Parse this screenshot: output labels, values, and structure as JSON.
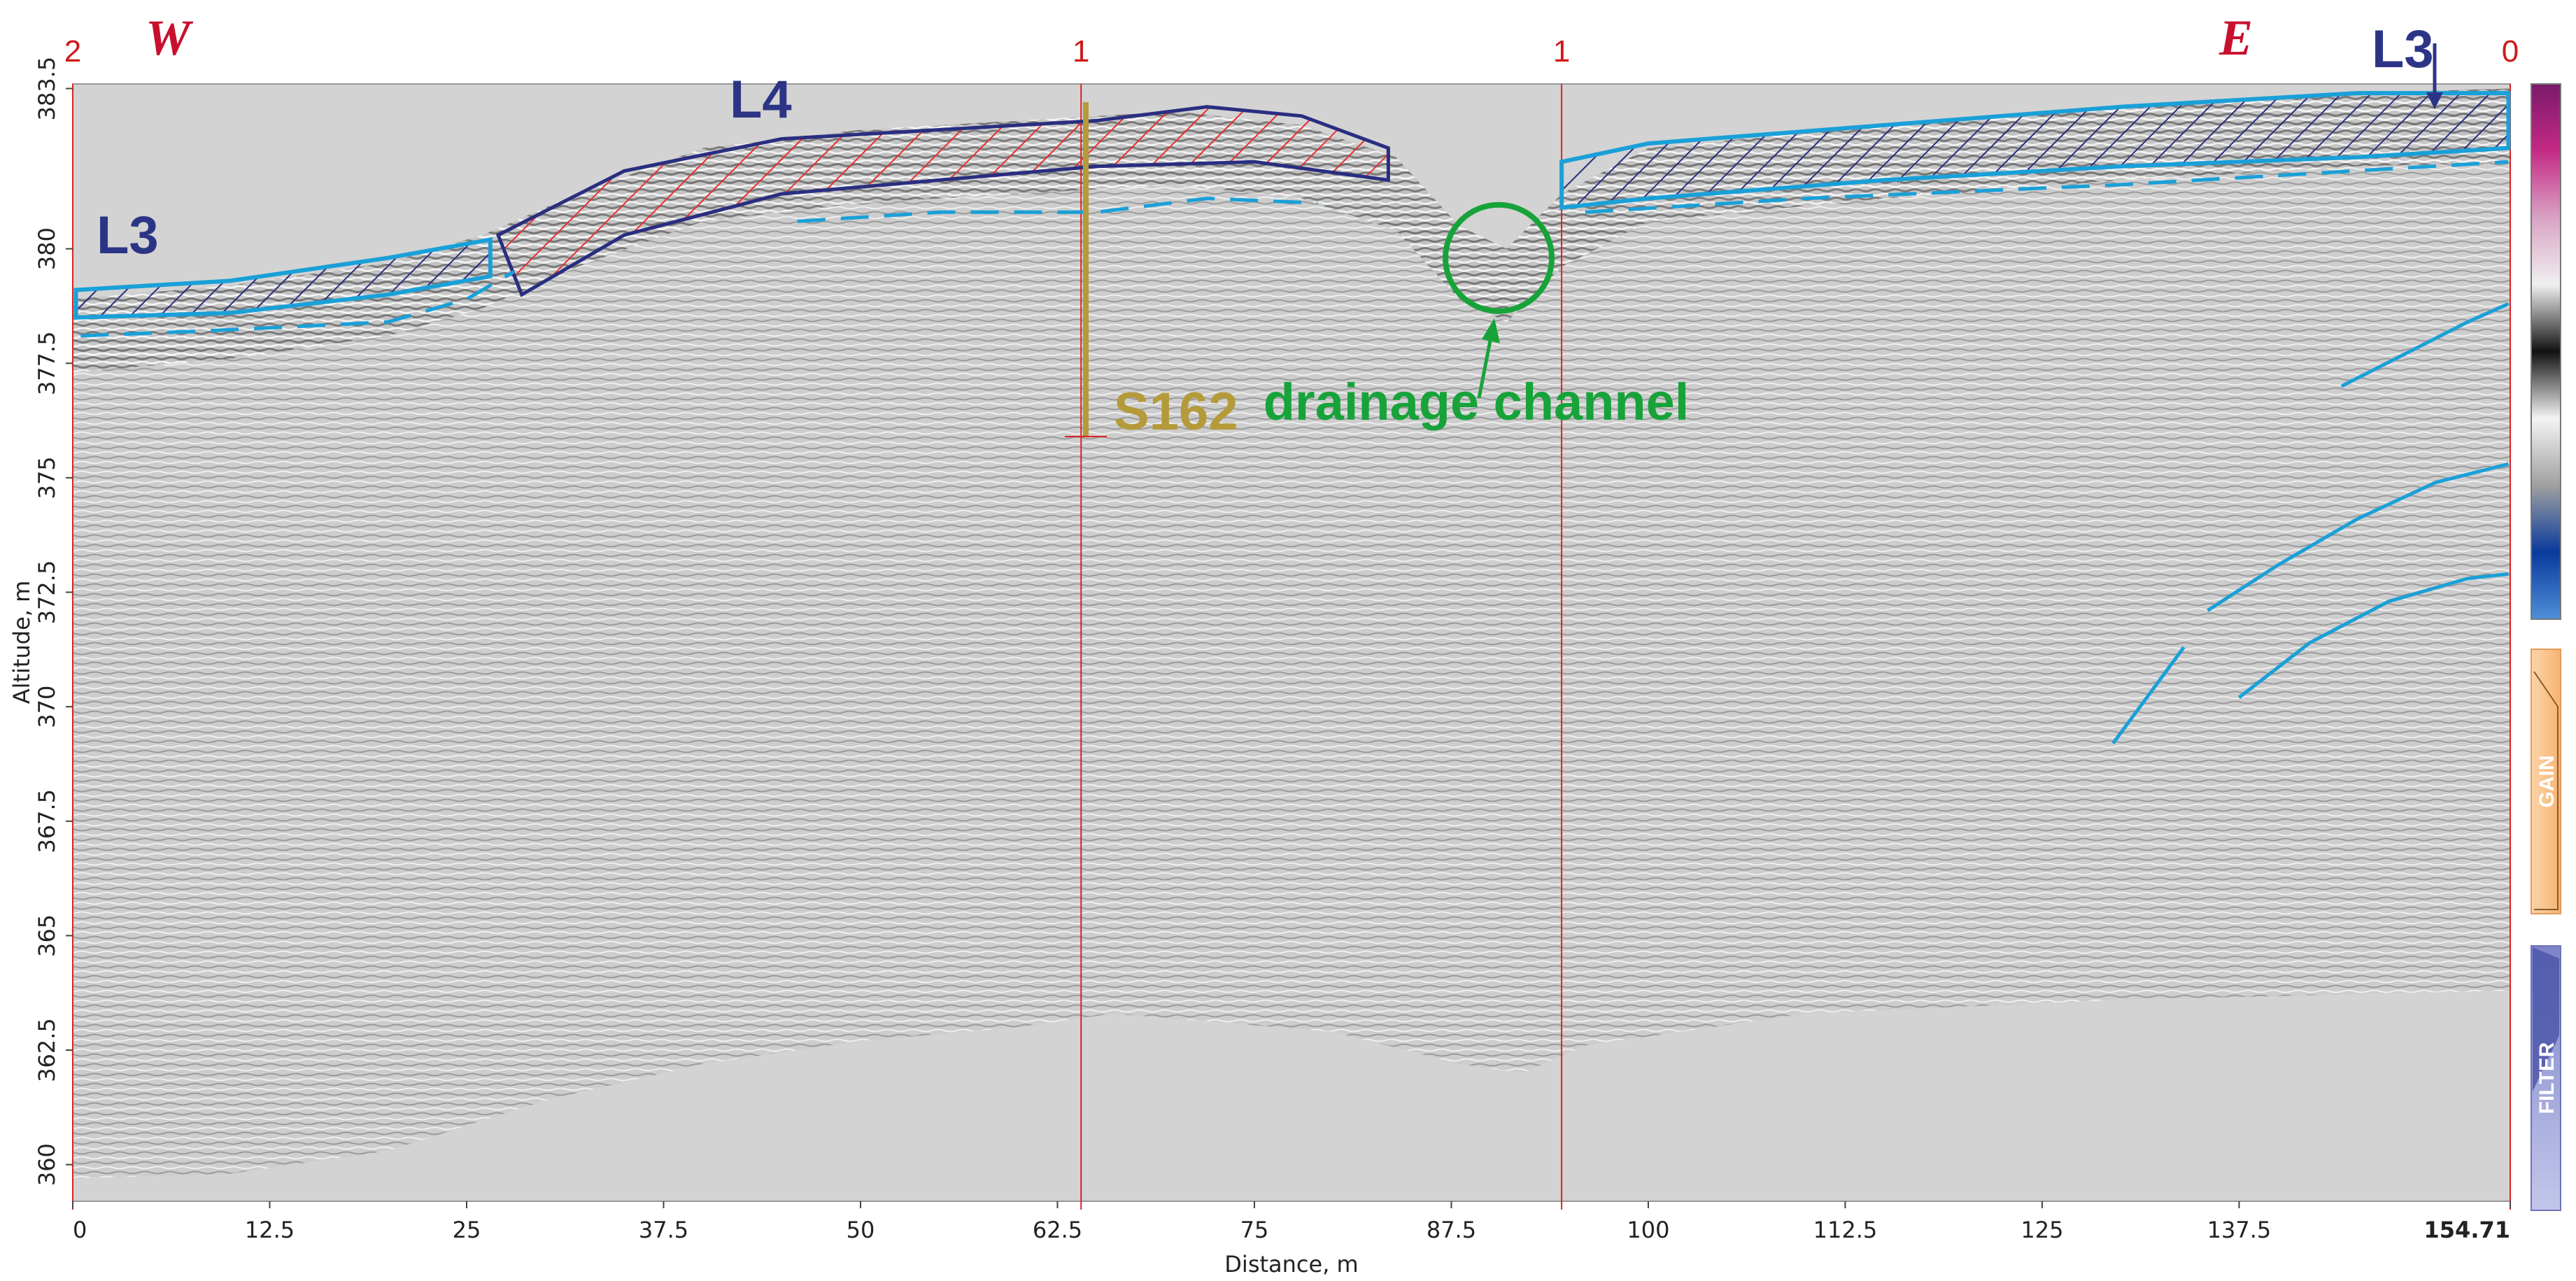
{
  "chart_data": {
    "type": "radargram",
    "xlabel": "Distance, m",
    "ylabel": "Altitude, m",
    "xlim": [
      0,
      154.71
    ],
    "ylim": [
      359.2,
      383.6
    ],
    "x_ticks": [
      "0",
      "12.5",
      "25",
      "37.5",
      "50",
      "62.5",
      "75",
      "87.5",
      "100",
      "112.5",
      "125",
      "137.5",
      "154.71"
    ],
    "x_tick_values": [
      0,
      12.5,
      25,
      37.5,
      50,
      62.5,
      75,
      87.5,
      100,
      112.5,
      125,
      137.5,
      154.71
    ],
    "y_ticks": [
      "360",
      "362.5",
      "365",
      "367.5",
      "370",
      "372.5",
      "375",
      "377.5",
      "380",
      "383.5"
    ],
    "y_tick_values": [
      360,
      362.5,
      365,
      367.5,
      370,
      372.5,
      375,
      377.5,
      380,
      383.5
    ],
    "direction_left": "W",
    "direction_right": "E",
    "markers": [
      {
        "label": "2",
        "x": 0
      },
      {
        "label": "1",
        "x": 64
      },
      {
        "label": "1",
        "x": 94.5
      },
      {
        "label": "0",
        "x": 154.71
      }
    ],
    "annotations": {
      "l3_left": "L3",
      "l3_right": "L3",
      "l4": "L4",
      "borehole": "S162",
      "feature": "drainage channel"
    },
    "borehole": {
      "x": 64.3,
      "top": 383.2,
      "bottom": 375.9
    },
    "channel_center": {
      "x": 90.5,
      "y": 379.8
    },
    "surface": [
      [
        0,
        378.9
      ],
      [
        10,
        379.2
      ],
      [
        20,
        379.7
      ],
      [
        26,
        380.3
      ],
      [
        32,
        381.2
      ],
      [
        40,
        382.2
      ],
      [
        50,
        382.6
      ],
      [
        60,
        382.8
      ],
      [
        70,
        383.0
      ],
      [
        78,
        382.7
      ],
      [
        84,
        382.0
      ],
      [
        88,
        380.5
      ],
      [
        91,
        380.0
      ],
      [
        94.5,
        381.2
      ],
      [
        100,
        382.2
      ],
      [
        115,
        382.7
      ],
      [
        130,
        383.1
      ],
      [
        145,
        383.4
      ],
      [
        154.71,
        383.5
      ]
    ],
    "base_of_signal": [
      [
        0,
        359.7
      ],
      [
        10,
        359.8
      ],
      [
        20,
        360.3
      ],
      [
        30,
        361.4
      ],
      [
        40,
        362.2
      ],
      [
        50,
        362.7
      ],
      [
        60,
        363.0
      ],
      [
        66,
        363.3
      ],
      [
        80,
        362.9
      ],
      [
        88,
        362.2
      ],
      [
        92,
        362.0
      ],
      [
        96,
        362.6
      ],
      [
        110,
        363.3
      ],
      [
        130,
        363.6
      ],
      [
        154.71,
        363.8
      ]
    ],
    "units": {
      "L3_left": [
        [
          0.2,
          379.1
        ],
        [
          10,
          379.3
        ],
        [
          20,
          379.8
        ],
        [
          26.5,
          380.2
        ],
        [
          26.5,
          379.4
        ],
        [
          20,
          379.0
        ],
        [
          10,
          378.6
        ],
        [
          0.2,
          378.5
        ]
      ],
      "L4": [
        [
          27,
          380.3
        ],
        [
          35,
          381.7
        ],
        [
          45,
          382.4
        ],
        [
          55,
          382.6
        ],
        [
          65,
          382.8
        ],
        [
          72,
          383.1
        ],
        [
          78,
          382.9
        ],
        [
          83.5,
          382.2
        ],
        [
          83.5,
          381.5
        ],
        [
          75,
          381.9
        ],
        [
          65,
          381.8
        ],
        [
          55,
          381.5
        ],
        [
          45,
          381.2
        ],
        [
          35,
          380.3
        ],
        [
          28.5,
          379.0
        ]
      ],
      "L3_right": [
        [
          94.5,
          381.9
        ],
        [
          100,
          382.3
        ],
        [
          115,
          382.7
        ],
        [
          130,
          383.1
        ],
        [
          145,
          383.4
        ],
        [
          154.6,
          383.4
        ],
        [
          154.6,
          382.2
        ],
        [
          145,
          382.0
        ],
        [
          130,
          381.8
        ],
        [
          115,
          381.5
        ],
        [
          100,
          381.1
        ],
        [
          94.5,
          380.9
        ]
      ]
    },
    "dashed_reflector_left": [
      [
        0.5,
        378.1
      ],
      [
        8,
        378.2
      ],
      [
        20,
        378.4
      ],
      [
        25,
        378.9
      ],
      [
        28,
        379.5
      ]
    ],
    "dashed_reflector_mid": [
      [
        46,
        380.6
      ],
      [
        55,
        380.8
      ],
      [
        65,
        380.8
      ],
      [
        72,
        381.1
      ],
      [
        79,
        381.0
      ]
    ],
    "dashed_reflector_right": [
      [
        96,
        380.8
      ],
      [
        110,
        381.1
      ],
      [
        130,
        381.4
      ],
      [
        154.6,
        381.9
      ]
    ],
    "hyperbola_reflectors": [
      [
        [
          144,
          377.0
        ],
        [
          148,
          377.7
        ],
        [
          152,
          378.4
        ],
        [
          154.6,
          378.8
        ]
      ],
      [
        [
          129.5,
          369.2
        ],
        [
          134,
          371.3
        ]
      ],
      [
        [
          135.5,
          372.1
        ],
        [
          140,
          373.1
        ],
        [
          145,
          374.1
        ],
        [
          150,
          374.9
        ],
        [
          154.6,
          375.3
        ]
      ],
      [
        [
          137.5,
          370.2
        ],
        [
          142,
          371.4
        ],
        [
          147,
          372.3
        ],
        [
          152,
          372.8
        ],
        [
          154.6,
          372.9
        ]
      ]
    ],
    "colorbar": [
      "#7a1a6a",
      "#c42a84",
      "#d9a3c4",
      "#f0f0f0",
      "#111111",
      "#f4f4f4",
      "#a0a0a0",
      "#0a3a9c",
      "#4f8fd8"
    ],
    "side_panels": {
      "gain": "GAIN",
      "filter": "FILTER"
    },
    "colors": {
      "marker": "#dc2222",
      "direction": "#c8102e",
      "l3": "#1aa0d8",
      "l4": "#e53030",
      "unit_outline": "#2a2e80",
      "label": "#2c3585",
      "borehole": "#b59a3a",
      "feature": "#17a33a",
      "gain": "#f7b472",
      "filter": "#7d84c9"
    }
  }
}
